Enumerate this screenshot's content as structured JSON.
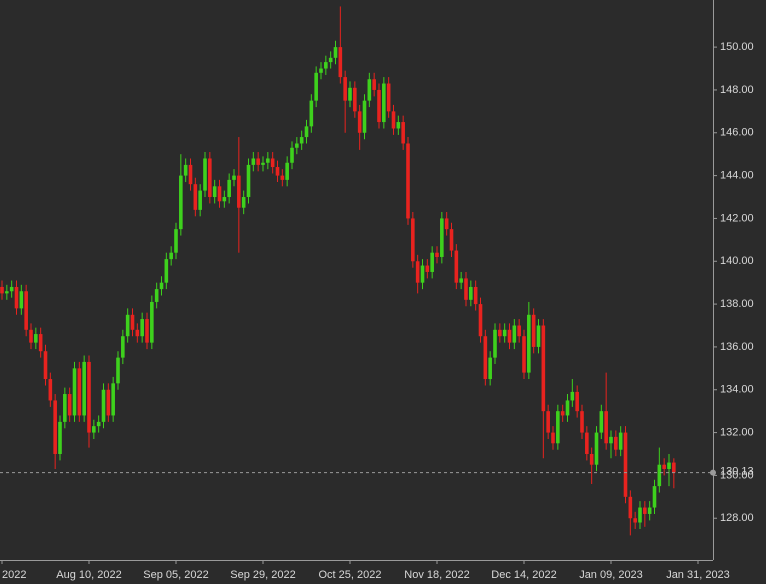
{
  "chart_data": {
    "type": "candlestick",
    "categories": [
      "2022",
      null,
      null,
      null,
      null,
      null,
      null,
      null,
      null,
      null,
      null,
      null,
      null,
      null,
      null,
      null,
      null,
      null,
      "Aug 10, 2022",
      null,
      null,
      null,
      null,
      null,
      null,
      null,
      null,
      null,
      null,
      null,
      null,
      null,
      null,
      null,
      null,
      null,
      "Sep 05, 2022",
      null,
      null,
      null,
      null,
      null,
      null,
      null,
      null,
      null,
      null,
      null,
      null,
      null,
      null,
      null,
      null,
      null,
      "Sep 29, 2022",
      null,
      null,
      null,
      null,
      null,
      null,
      null,
      null,
      null,
      null,
      null,
      null,
      null,
      null,
      null,
      null,
      null,
      "Oct 25, 2022",
      null,
      null,
      null,
      null,
      null,
      null,
      null,
      null,
      null,
      null,
      null,
      null,
      null,
      null,
      null,
      null,
      null,
      "Nov 18, 2022",
      null,
      null,
      null,
      null,
      null,
      null,
      null,
      null,
      null,
      null,
      null,
      null,
      null,
      null,
      null,
      null,
      null,
      "Dec 14, 2022",
      null,
      null,
      null,
      null,
      null,
      null,
      null,
      null,
      null,
      null,
      null,
      null,
      null,
      null,
      null,
      null,
      null,
      "Jan 09, 2023",
      null,
      null,
      null,
      null,
      null,
      null,
      null,
      null,
      null,
      null,
      null,
      null,
      null,
      null,
      null,
      null,
      null,
      "Jan 31, 2023"
    ],
    "open": [
      138.8,
      138.5,
      138.6,
      138.8,
      137.8,
      138.6,
      136.8,
      136.2,
      136.6,
      135.8,
      134.5,
      133.5,
      131.0,
      132.5,
      133.8,
      132.8,
      135.0,
      132.8,
      135.3,
      132.0,
      132.3,
      132.5,
      134.0,
      132.8,
      134.3,
      135.5,
      136.5,
      137.5,
      136.8,
      136.5,
      137.3,
      136.2,
      138.1,
      138.7,
      139.0,
      140.1,
      140.4,
      141.5,
      144.0,
      144.5,
      143.6,
      142.4,
      143.3,
      144.8,
      143.0,
      143.5,
      142.8,
      143.0,
      143.8,
      144.0,
      142.5,
      143.0,
      144.5,
      144.8,
      144.5,
      144.6,
      144.8,
      144.4,
      144.0,
      143.8,
      144.6,
      145.3,
      145.5,
      145.8,
      146.3,
      147.5,
      148.8,
      149.0,
      149.3,
      149.5,
      150.0,
      148.6,
      147.5,
      148.1,
      147.0,
      146.0,
      147.5,
      148.5,
      148.0,
      146.5,
      148.3,
      147.0,
      146.2,
      146.5,
      145.5,
      142.0,
      140.0,
      139.0,
      139.8,
      139.5,
      140.4,
      140.2,
      142.0,
      141.5,
      140.5,
      139.0,
      139.2,
      138.2,
      138.8,
      138.0,
      136.5,
      134.5,
      135.5,
      136.8,
      136.5,
      136.8,
      136.2,
      137.0,
      136.5,
      134.8,
      137.5,
      136.0,
      137.0,
      133.0,
      132.0,
      131.5,
      133.0,
      132.8,
      133.5,
      133.9,
      133.0,
      132.0,
      131.0,
      130.5,
      132.0,
      133.0,
      131.5,
      131.8,
      131.2,
      132.0,
      129.0,
      128.0,
      127.8,
      128.5,
      128.2,
      128.5,
      129.5,
      130.5,
      130.3,
      130.6,
      null,
      null,
      null,
      null,
      null
    ],
    "high": [
      139.1,
      138.9,
      139.1,
      139.1,
      138.9,
      138.9,
      137.1,
      136.9,
      136.9,
      136.1,
      134.8,
      133.8,
      132.8,
      134.1,
      134.1,
      135.3,
      135.3,
      135.6,
      135.6,
      132.6,
      132.8,
      134.3,
      134.3,
      134.6,
      135.8,
      136.8,
      137.8,
      137.8,
      137.1,
      137.6,
      137.6,
      138.4,
      139.0,
      139.3,
      140.4,
      140.7,
      141.8,
      145.0,
      144.8,
      144.8,
      143.9,
      143.6,
      145.1,
      145.1,
      143.8,
      143.8,
      143.3,
      144.1,
      144.3,
      145.8,
      143.3,
      144.8,
      145.1,
      145.1,
      144.9,
      145.1,
      145.1,
      144.7,
      144.3,
      144.9,
      145.6,
      145.8,
      146.1,
      146.6,
      147.8,
      149.1,
      149.3,
      149.6,
      149.8,
      150.3,
      151.9,
      148.9,
      148.4,
      148.4,
      147.3,
      147.8,
      148.8,
      148.8,
      148.3,
      148.6,
      148.6,
      147.3,
      146.8,
      146.8,
      145.8,
      142.3,
      140.3,
      140.1,
      140.1,
      140.7,
      140.7,
      142.3,
      142.3,
      141.8,
      140.8,
      139.5,
      139.5,
      139.1,
      139.1,
      138.3,
      136.8,
      135.8,
      137.1,
      137.1,
      137.1,
      137.1,
      137.3,
      137.3,
      136.8,
      138.1,
      137.8,
      137.3,
      137.3,
      133.3,
      132.3,
      133.3,
      133.3,
      133.8,
      134.5,
      134.2,
      133.3,
      132.3,
      131.3,
      132.3,
      133.3,
      134.8,
      132.1,
      132.1,
      132.3,
      132.3,
      129.3,
      128.3,
      128.8,
      128.8,
      128.8,
      129.8,
      131.3,
      130.8,
      131.0,
      130.8,
      null,
      null,
      null,
      null,
      null
    ],
    "low": [
      138.2,
      138.2,
      138.3,
      137.5,
      137.5,
      136.5,
      135.9,
      135.9,
      135.5,
      134.2,
      133.2,
      130.3,
      130.7,
      132.2,
      132.5,
      132.5,
      132.5,
      132.5,
      131.3,
      131.7,
      132.0,
      132.2,
      132.5,
      132.5,
      134.0,
      135.2,
      136.2,
      136.5,
      136.2,
      136.2,
      135.9,
      135.9,
      137.8,
      138.4,
      138.7,
      139.8,
      140.1,
      141.2,
      143.7,
      143.3,
      142.1,
      142.1,
      143.0,
      142.7,
      142.7,
      142.5,
      142.5,
      142.7,
      143.5,
      140.4,
      142.2,
      142.7,
      144.2,
      144.2,
      144.2,
      144.3,
      144.1,
      143.7,
      143.5,
      143.5,
      144.3,
      145.0,
      145.2,
      145.5,
      146.0,
      147.2,
      148.5,
      148.7,
      149.0,
      149.2,
      148.3,
      146.0,
      147.2,
      146.7,
      145.2,
      145.7,
      147.2,
      147.7,
      146.2,
      146.2,
      146.7,
      145.9,
      145.9,
      145.2,
      141.7,
      139.7,
      138.5,
      138.7,
      139.2,
      139.2,
      139.9,
      139.9,
      141.2,
      140.2,
      138.7,
      138.7,
      137.9,
      137.9,
      137.7,
      136.2,
      134.2,
      134.2,
      135.2,
      136.2,
      136.2,
      135.9,
      135.9,
      136.2,
      134.5,
      134.5,
      135.7,
      135.7,
      130.8,
      131.7,
      131.2,
      131.2,
      132.5,
      132.5,
      133.2,
      132.7,
      131.7,
      130.7,
      129.6,
      130.2,
      131.7,
      131.2,
      130.8,
      130.9,
      130.9,
      128.7,
      127.2,
      127.5,
      127.5,
      127.6,
      127.9,
      128.2,
      129.2,
      130.0,
      129.5,
      129.4,
      null,
      null,
      null,
      null,
      null
    ],
    "close": [
      138.5,
      138.6,
      138.8,
      137.8,
      138.6,
      136.8,
      136.2,
      136.6,
      135.8,
      134.5,
      133.5,
      131.0,
      132.5,
      133.8,
      132.8,
      135.0,
      132.8,
      135.3,
      132.0,
      132.3,
      132.5,
      134.0,
      132.8,
      134.3,
      135.5,
      136.5,
      137.5,
      136.8,
      136.5,
      137.3,
      136.2,
      138.1,
      138.7,
      139.0,
      140.1,
      140.4,
      141.5,
      144.0,
      144.5,
      143.6,
      142.4,
      143.3,
      144.8,
      143.0,
      143.5,
      142.8,
      143.0,
      143.8,
      144.0,
      142.5,
      143.0,
      144.5,
      144.8,
      144.5,
      144.6,
      144.8,
      144.4,
      144.0,
      143.8,
      144.6,
      145.3,
      145.5,
      145.8,
      146.3,
      147.5,
      148.8,
      149.0,
      149.3,
      149.5,
      150.0,
      148.6,
      147.5,
      148.1,
      147.0,
      146.0,
      147.5,
      148.5,
      148.0,
      146.5,
      148.3,
      147.0,
      146.2,
      146.5,
      145.5,
      142.0,
      140.0,
      139.0,
      139.8,
      139.5,
      140.4,
      140.2,
      142.0,
      141.5,
      140.5,
      139.0,
      139.2,
      138.2,
      138.8,
      138.0,
      136.5,
      134.5,
      135.5,
      136.8,
      136.5,
      136.8,
      136.2,
      137.0,
      136.5,
      134.8,
      137.5,
      136.0,
      137.0,
      133.0,
      132.0,
      131.5,
      133.0,
      132.8,
      133.5,
      133.9,
      133.0,
      132.0,
      131.0,
      130.5,
      132.0,
      133.0,
      131.5,
      131.8,
      131.2,
      132.0,
      129.0,
      128.0,
      127.8,
      128.5,
      128.2,
      128.5,
      129.5,
      130.5,
      130.3,
      130.6,
      130.13,
      null,
      null,
      null,
      null,
      null
    ],
    "up_color": "#3ed11d",
    "down_color": "#e8231f",
    "ylim": [
      126.05,
      152.2
    ],
    "yticks": [
      {
        "value": 128,
        "label": "128.00"
      },
      {
        "value": 130,
        "label": "130.00"
      },
      {
        "value": 132,
        "label": "132.00"
      },
      {
        "value": 134,
        "label": "134.00"
      },
      {
        "value": 136,
        "label": "136.00"
      },
      {
        "value": 138,
        "label": "138.00"
      },
      {
        "value": 140,
        "label": "140.00"
      },
      {
        "value": 142,
        "label": "142.00"
      },
      {
        "value": 144,
        "label": "144.00"
      },
      {
        "value": 146,
        "label": "146.00"
      },
      {
        "value": 148,
        "label": "148.00"
      },
      {
        "value": 150,
        "label": "150.00"
      }
    ],
    "grid": false
  }
}
